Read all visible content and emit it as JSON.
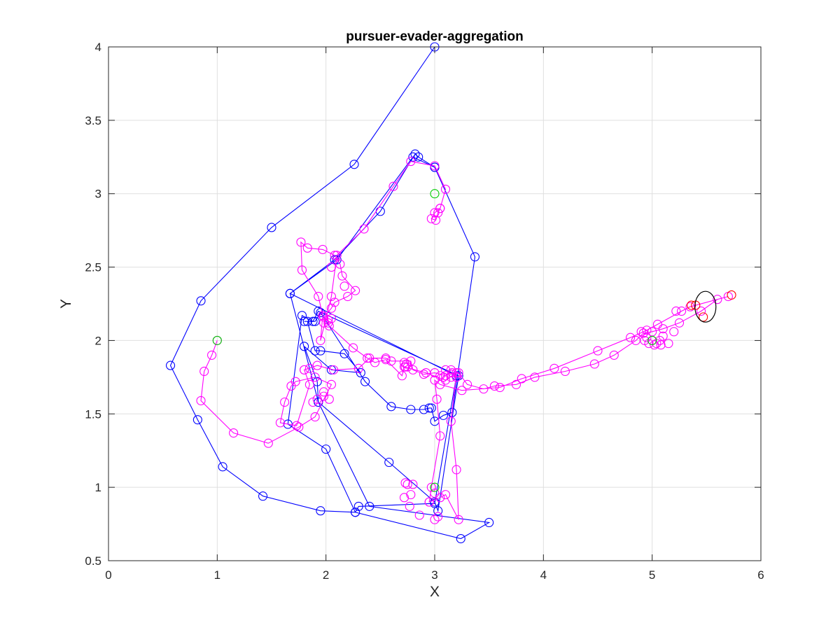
{
  "chart_data": {
    "type": "line",
    "title": "pursuer-evader-aggregation",
    "xlabel": "X",
    "ylabel": "Y",
    "xlim": [
      0,
      6
    ],
    "ylim": [
      0.5,
      4
    ],
    "xticks": [
      0,
      1,
      2,
      3,
      4,
      5,
      6
    ],
    "yticks": [
      0.5,
      1,
      1.5,
      2,
      2.5,
      3,
      3.5,
      4
    ],
    "xtick_labels": [
      "0",
      "1",
      "2",
      "3",
      "4",
      "5",
      "6"
    ],
    "ytick_labels": [
      "0.5",
      "1",
      "1.5",
      "2",
      "2.5",
      "3",
      "3.5",
      "4"
    ],
    "grid": true,
    "series": [
      {
        "color": "#0000ff",
        "marker": "circle",
        "line": true,
        "points": [
          [
            3.0,
            4.0
          ],
          [
            2.26,
            3.2
          ],
          [
            1.5,
            2.77
          ],
          [
            0.85,
            2.27
          ],
          [
            0.57,
            1.83
          ],
          [
            0.82,
            1.46
          ],
          [
            1.05,
            1.14
          ],
          [
            1.42,
            0.94
          ],
          [
            1.95,
            0.84
          ],
          [
            2.27,
            0.83
          ],
          [
            2.3,
            0.87
          ],
          [
            3.0,
            0.89
          ],
          [
            3.2,
            1.76
          ],
          [
            1.67,
            2.32
          ],
          [
            2.08,
            2.55
          ],
          [
            2.5,
            2.88
          ],
          [
            2.82,
            3.27
          ],
          [
            2.85,
            3.25
          ],
          [
            3.0,
            3.18
          ],
          [
            3.37,
            2.57
          ],
          [
            3.16,
            1.51
          ],
          [
            3.08,
            1.49
          ],
          [
            3.0,
            1.45
          ],
          [
            2.97,
            1.54
          ],
          [
            2.95,
            1.54
          ],
          [
            2.9,
            1.53
          ],
          [
            2.78,
            1.53
          ],
          [
            2.6,
            1.55
          ],
          [
            2.36,
            1.72
          ],
          [
            1.95,
            2.19
          ],
          [
            1.9,
            2.13
          ],
          [
            1.8,
            2.13
          ],
          [
            1.83,
            2.13
          ],
          [
            1.9,
            1.93
          ],
          [
            1.95,
            1.93
          ],
          [
            2.17,
            1.91
          ],
          [
            2.32,
            1.78
          ],
          [
            2.05,
            1.8
          ],
          [
            1.8,
            1.96
          ],
          [
            1.92,
            1.72
          ],
          [
            1.93,
            1.58
          ],
          [
            2.58,
            1.17
          ],
          [
            3.0,
            0.9
          ],
          [
            3.03,
            0.84
          ],
          [
            3.22,
            1.76
          ],
          [
            1.93,
            2.2
          ],
          [
            1.88,
            2.13
          ],
          [
            1.78,
            2.17
          ],
          [
            1.65,
            1.43
          ],
          [
            2.0,
            1.26
          ],
          [
            2.27,
            0.83
          ],
          [
            3.24,
            0.65
          ],
          [
            3.5,
            0.76
          ],
          [
            2.4,
            0.87
          ],
          [
            1.93,
            1.58
          ],
          [
            1.67,
            2.32
          ],
          [
            2.1,
            2.55
          ],
          [
            2.8,
            3.25
          ],
          [
            3.0,
            3.18
          ]
        ]
      },
      {
        "color": "#ff00ff",
        "marker": "circle",
        "line": true,
        "points": [
          [
            1.0,
            2.0
          ],
          [
            0.95,
            1.9
          ],
          [
            0.88,
            1.79
          ],
          [
            0.85,
            1.59
          ],
          [
            1.15,
            1.37
          ],
          [
            1.47,
            1.3
          ],
          [
            1.75,
            1.41
          ],
          [
            1.9,
            1.48
          ],
          [
            2.05,
            1.7
          ],
          [
            1.9,
            1.75
          ],
          [
            1.72,
            1.72
          ],
          [
            1.68,
            1.69
          ],
          [
            1.62,
            1.58
          ],
          [
            1.58,
            1.44
          ],
          [
            1.73,
            1.42
          ],
          [
            1.85,
            1.7
          ],
          [
            1.8,
            1.8
          ],
          [
            1.92,
            1.83
          ],
          [
            2.07,
            1.8
          ],
          [
            2.3,
            1.81
          ],
          [
            2.4,
            1.88
          ],
          [
            2.55,
            1.88
          ],
          [
            2.6,
            1.86
          ],
          [
            2.78,
            1.86
          ],
          [
            2.8,
            1.8
          ],
          [
            2.9,
            1.77
          ],
          [
            3.0,
            1.78
          ],
          [
            3.1,
            1.76
          ],
          [
            3.15,
            1.8
          ],
          [
            3.22,
            1.78
          ],
          [
            3.3,
            1.7
          ],
          [
            3.45,
            1.67
          ],
          [
            3.55,
            1.69
          ],
          [
            3.75,
            1.7
          ],
          [
            3.92,
            1.75
          ],
          [
            4.2,
            1.79
          ],
          [
            4.47,
            1.84
          ],
          [
            4.65,
            1.9
          ],
          [
            4.85,
            2.0
          ],
          [
            4.92,
            2.05
          ],
          [
            5.0,
            2.06
          ],
          [
            5.1,
            2.08
          ],
          [
            5.25,
            2.12
          ],
          [
            5.45,
            2.2
          ],
          [
            5.6,
            2.28
          ],
          [
            5.7,
            2.3
          ],
          [
            5.35,
            2.23
          ],
          [
            5.27,
            2.2
          ],
          [
            5.05,
            2.11
          ],
          [
            4.95,
            2.07
          ],
          [
            4.8,
            2.02
          ],
          [
            4.5,
            1.93
          ],
          [
            4.1,
            1.81
          ],
          [
            3.8,
            1.74
          ],
          [
            3.6,
            1.68
          ],
          [
            3.25,
            1.66
          ],
          [
            3.05,
            1.7
          ],
          [
            3.0,
            1.73
          ],
          [
            3.02,
            1.6
          ],
          [
            3.05,
            1.35
          ],
          [
            2.97,
            1.0
          ],
          [
            2.95,
            0.9
          ],
          [
            3.05,
            0.93
          ],
          [
            3.1,
            0.95
          ],
          [
            3.22,
            0.78
          ],
          [
            3.2,
            1.12
          ],
          [
            3.15,
            1.45
          ],
          [
            3.2,
            1.78
          ],
          [
            3.1,
            1.73
          ],
          [
            2.92,
            1.78
          ],
          [
            2.72,
            1.82
          ],
          [
            2.7,
            1.76
          ],
          [
            2.55,
            1.87
          ],
          [
            2.45,
            1.85
          ],
          [
            2.38,
            1.88
          ],
          [
            2.25,
            1.95
          ],
          [
            2.03,
            2.1
          ],
          [
            2.02,
            2.14
          ],
          [
            1.98,
            2.16
          ],
          [
            2.05,
            2.22
          ],
          [
            2.08,
            2.26
          ],
          [
            2.2,
            2.3
          ],
          [
            2.27,
            2.34
          ],
          [
            2.15,
            2.44
          ],
          [
            2.13,
            2.52
          ],
          [
            2.08,
            2.58
          ],
          [
            1.97,
            2.62
          ],
          [
            1.83,
            2.63
          ],
          [
            1.77,
            2.67
          ],
          [
            1.78,
            2.48
          ],
          [
            1.93,
            2.3
          ],
          [
            1.97,
            2.17
          ],
          [
            1.95,
            2.0
          ],
          [
            2.05,
            2.3
          ],
          [
            2.1,
            2.58
          ],
          [
            2.35,
            2.76
          ],
          [
            2.62,
            3.05
          ],
          [
            2.78,
            3.22
          ],
          [
            3.0,
            3.19
          ],
          [
            3.1,
            3.03
          ],
          [
            3.05,
            2.9
          ],
          [
            3.0,
            2.87
          ],
          [
            2.97,
            2.83
          ],
          [
            3.01,
            2.82
          ],
          [
            3.03,
            2.87
          ],
          [
            3.05,
            2.9
          ]
        ]
      },
      {
        "color": "#ff00ff",
        "marker": "circle",
        "line": false,
        "points": [
          [
            2.73,
            1.03
          ],
          [
            2.75,
            1.02
          ],
          [
            2.8,
            1.02
          ],
          [
            2.78,
            0.95
          ],
          [
            2.72,
            0.93
          ],
          [
            2.77,
            0.87
          ],
          [
            2.86,
            0.81
          ],
          [
            2.95,
            0.9
          ],
          [
            3.0,
            0.78
          ],
          [
            3.03,
            0.8
          ],
          [
            3.0,
            0.96
          ],
          [
            4.93,
            2.0
          ],
          [
            4.97,
            1.98
          ],
          [
            5.0,
            2.0
          ],
          [
            5.04,
            1.98
          ],
          [
            5.08,
            1.97
          ],
          [
            4.95,
            2.02
          ],
          [
            5.02,
            1.97
          ],
          [
            4.9,
            2.06
          ],
          [
            5.15,
            1.98
          ],
          [
            5.2,
            2.06
          ],
          [
            5.22,
            2.2
          ],
          [
            5.1,
            2.03
          ],
          [
            5.07,
            2.0
          ],
          [
            1.88,
            1.58
          ],
          [
            1.92,
            1.6
          ],
          [
            1.98,
            1.65
          ],
          [
            2.03,
            1.6
          ],
          [
            1.98,
            1.62
          ],
          [
            1.8,
            1.8
          ],
          [
            1.85,
            1.81
          ],
          [
            2.72,
            1.85
          ],
          [
            2.74,
            1.84
          ],
          [
            2.75,
            1.82
          ],
          [
            2.73,
            1.82
          ],
          [
            3.16,
            1.78
          ],
          [
            3.2,
            1.75
          ],
          [
            3.15,
            1.75
          ],
          [
            3.05,
            1.76
          ],
          [
            3.08,
            1.75
          ],
          [
            3.1,
            1.8
          ],
          [
            2.05,
            2.5
          ],
          [
            2.17,
            2.37
          ],
          [
            2.05,
            2.15
          ],
          [
            1.98,
            2.12
          ],
          [
            2.02,
            2.12
          ]
        ]
      },
      {
        "color": "#00cc00",
        "marker": "circle",
        "line": false,
        "points": [
          [
            1.0,
            2.0
          ],
          [
            3.0,
            3.0
          ],
          [
            3.0,
            1.0
          ],
          [
            5.0,
            2.0
          ]
        ]
      },
      {
        "color": "#ff0000",
        "marker": "circle",
        "line": false,
        "points": [
          [
            5.36,
            2.24
          ],
          [
            5.4,
            2.24
          ],
          [
            5.47,
            2.16
          ],
          [
            5.73,
            2.31
          ]
        ]
      },
      {
        "color": "#000000",
        "marker": "ellipse",
        "line": false,
        "points": [
          [
            5.49,
            2.23
          ]
        ]
      }
    ]
  }
}
